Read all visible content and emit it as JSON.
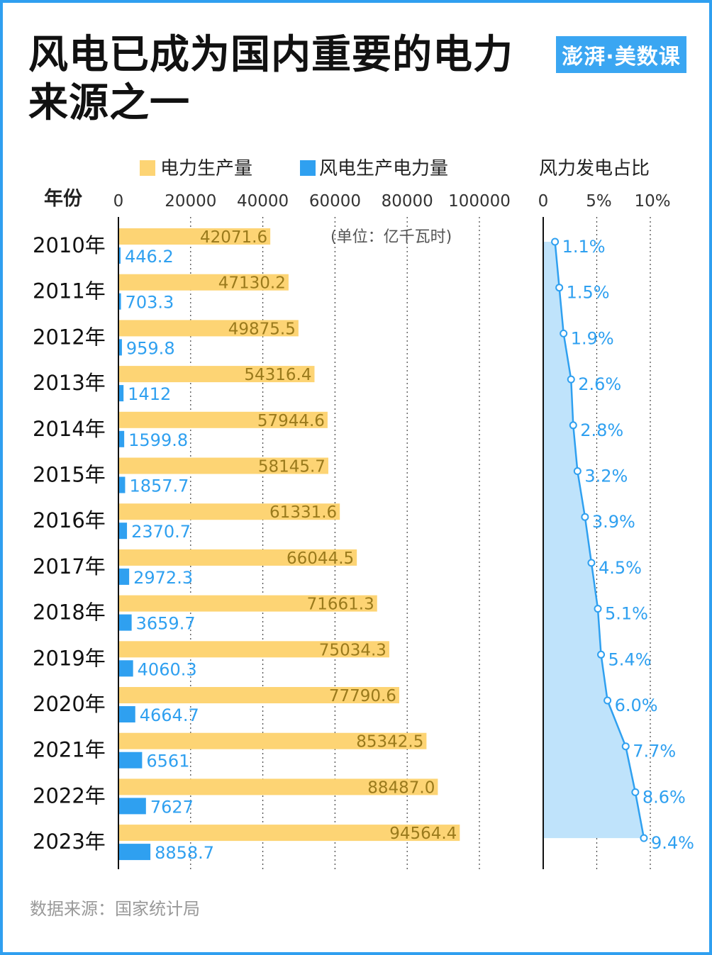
{
  "title": "风电已成为国内重要的电力来源之一",
  "logo": "澎湃·美数课",
  "source": "数据来源：国家统计局",
  "colors": {
    "total": "#fdd474",
    "wind": "#2fa0f0",
    "share_fill": "#bfe3fb",
    "total_label": "#9a7a1c",
    "frame": "#2f9ff0"
  },
  "chart_data": [
    {
      "type": "bar",
      "orientation": "horizontal",
      "ylabel": "年份",
      "unit_note": "(单位：亿千瓦时)",
      "categories": [
        "2010年",
        "2011年",
        "2012年",
        "2013年",
        "2014年",
        "2015年",
        "2016年",
        "2017年",
        "2018年",
        "2019年",
        "2020年",
        "2021年",
        "2022年",
        "2023年"
      ],
      "xlim": [
        0,
        100000
      ],
      "xticks": [
        "0",
        "20000",
        "40000",
        "60000",
        "80000",
        "100000"
      ],
      "grid": "vertical-dotted",
      "legend": "top",
      "series": [
        {
          "name": "电力生产量",
          "values": [
            42071.6,
            47130.2,
            49875.5,
            54316.4,
            57944.6,
            58145.7,
            61331.6,
            66044.5,
            71661.3,
            75034.3,
            77790.6,
            85342.5,
            88487.0,
            94564.4
          ],
          "labels": [
            "42071.6",
            "47130.2",
            "49875.5",
            "54316.4",
            "57944.6",
            "58145.7",
            "61331.6",
            "66044.5",
            "71661.3",
            "75034.3",
            "77790.6",
            "85342.5",
            "88487.0",
            "94564.4"
          ]
        },
        {
          "name": "风电生产电力量",
          "values": [
            446.2,
            703.3,
            959.8,
            1412,
            1599.8,
            1857.7,
            2370.7,
            2972.3,
            3659.7,
            4060.3,
            4664.7,
            6561,
            7627,
            8858.7
          ],
          "labels": [
            "446.2",
            "703.3",
            "959.8",
            "1412",
            "1599.8",
            "1857.7",
            "2370.7",
            "2972.3",
            "3659.7",
            "4060.3",
            "4664.7",
            "6561",
            "7627",
            "8858.7"
          ]
        }
      ]
    },
    {
      "type": "area",
      "title": "风力发电占比",
      "xlim": [
        0,
        10
      ],
      "xticks": [
        "0",
        "5%",
        "10%"
      ],
      "grid": "vertical-dotted",
      "values": [
        1.1,
        1.5,
        1.9,
        2.6,
        2.8,
        3.2,
        3.9,
        4.5,
        5.1,
        5.4,
        6.0,
        7.7,
        8.6,
        9.4
      ],
      "labels": [
        "1.1%",
        "1.5%",
        "1.9%",
        "2.6%",
        "2.8%",
        "3.2%",
        "3.9%",
        "4.5%",
        "5.1%",
        "5.4%",
        "6.0%",
        "7.7%",
        "8.6%",
        "9.4%"
      ]
    }
  ]
}
